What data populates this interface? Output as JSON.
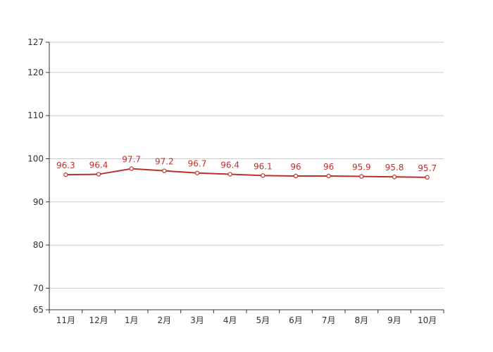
{
  "chart_data": {
    "type": "line",
    "categories": [
      "11月",
      "12月",
      "1月",
      "2月",
      "3月",
      "4月",
      "5月",
      "6月",
      "7月",
      "8月",
      "9月",
      "10月"
    ],
    "series": [
      {
        "values": [
          96.3,
          96.4,
          97.7,
          97.2,
          96.7,
          96.4,
          96.1,
          96,
          96,
          95.9,
          95.8,
          95.7
        ],
        "color": "#c0302a"
      }
    ],
    "ylim": [
      65,
      127
    ],
    "yticks": [
      65,
      70,
      80,
      90,
      100,
      110,
      120,
      127
    ],
    "grid": true,
    "legend": "none",
    "data_labels": [
      "96.3",
      "96.4",
      "97.7",
      "97.2",
      "96.7",
      "96.4",
      "96.1",
      "96",
      "96",
      "95.9",
      "95.8",
      "95.7"
    ],
    "colors": {
      "line": "#c0302a",
      "grid": "#cccccc",
      "axis": "#333333"
    }
  }
}
